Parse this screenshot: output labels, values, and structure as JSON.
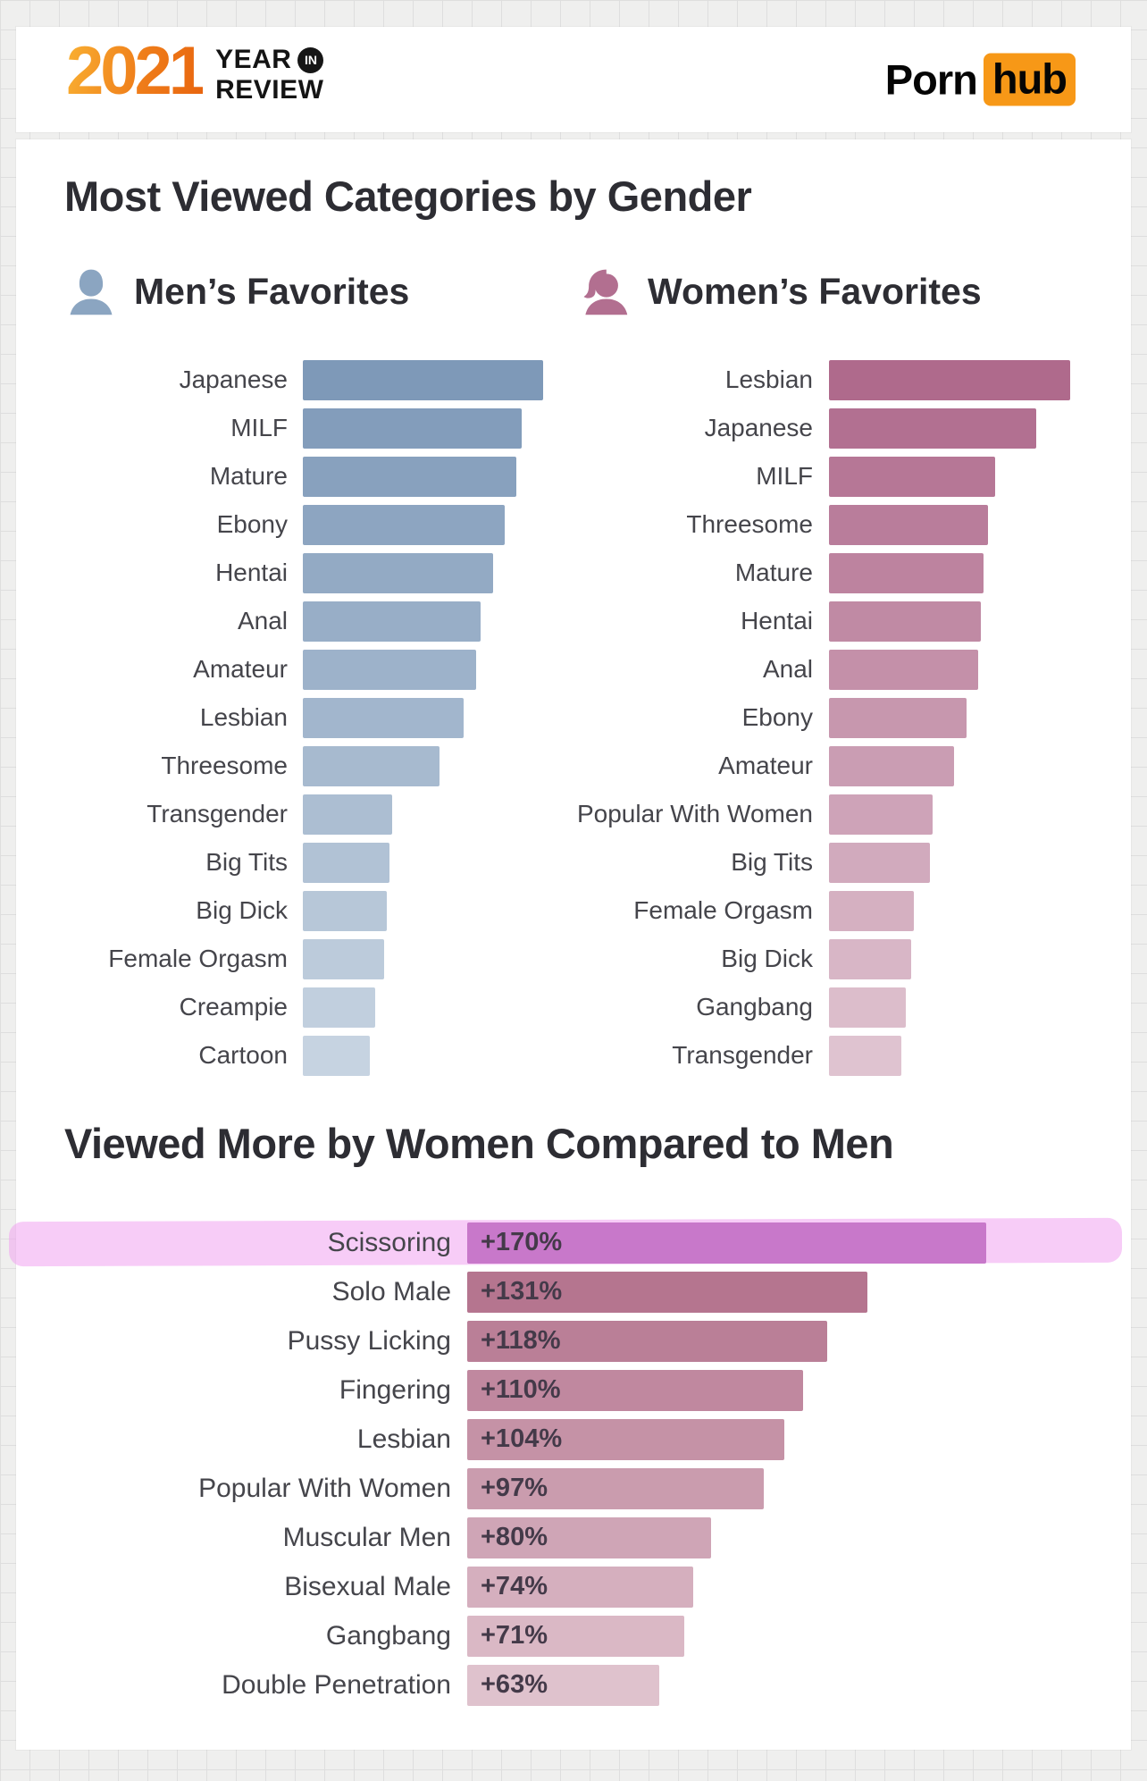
{
  "header": {
    "year": "2021",
    "year_word": "YEAR",
    "in_badge": "IN",
    "review_word": "REVIEW",
    "brand_porn": "Porn",
    "brand_hub": "hub"
  },
  "colors": {
    "brand_orange": "#f79817",
    "men_bar_start": "#7e99b8",
    "men_bar_end": "#c6d3e1",
    "women_bar_start": "#af6a8c",
    "women_bar_end": "#dfc3d0",
    "compare_bar_start": "#b5758f",
    "compare_bar_end": "#dfc2cd",
    "highlight_bar": "#c878ca",
    "highlight_band": "#efa2f1"
  },
  "section1": {
    "title": "Most Viewed Categories by Gender",
    "men": {
      "legend": "Men’s Favorites",
      "icon": "man-silhouette-icon"
    },
    "women": {
      "legend": "Women’s Favorites",
      "icon": "woman-silhouette-icon"
    }
  },
  "section2": {
    "title": "Viewed More by Women Compared to Men"
  },
  "chart_data": [
    {
      "type": "bar",
      "title": "Men’s Favorites",
      "orientation": "horizontal",
      "value_axis": "relative views (no numeric axis shown; longest bar = 100, others estimated from bar lengths)",
      "categories": [
        "Japanese",
        "MILF",
        "Mature",
        "Ebony",
        "Hentai",
        "Anal",
        "Amateur",
        "Lesbian",
        "Threesome",
        "Transgender",
        "Big Tits",
        "Big Dick",
        "Female Orgasm",
        "Creampie",
        "Cartoon"
      ],
      "values": [
        100,
        91,
        89,
        84,
        79,
        74,
        72,
        67,
        57,
        37,
        36,
        35,
        34,
        30,
        28
      ],
      "legend_position": "above-left",
      "grid": false
    },
    {
      "type": "bar",
      "title": "Women’s Favorites",
      "orientation": "horizontal",
      "value_axis": "relative views (no numeric axis shown; longest bar = 100, others estimated from bar lengths)",
      "categories": [
        "Lesbian",
        "Japanese",
        "MILF",
        "Threesome",
        "Mature",
        "Hentai",
        "Anal",
        "Ebony",
        "Amateur",
        "Popular With Women",
        "Big Tits",
        "Female Orgasm",
        "Big Dick",
        "Gangbang",
        "Transgender"
      ],
      "values": [
        100,
        86,
        69,
        66,
        64,
        63,
        62,
        57,
        52,
        43,
        42,
        35,
        34,
        32,
        30
      ],
      "legend_position": "above-left",
      "grid": false
    },
    {
      "type": "bar",
      "title": "Viewed More by Women Compared to Men",
      "orientation": "horizontal",
      "unit": "percent more viewed by women than by men",
      "categories": [
        "Scissoring",
        "Solo Male",
        "Pussy Licking",
        "Fingering",
        "Lesbian",
        "Popular With Women",
        "Muscular Men",
        "Bisexual Male",
        "Gangbang",
        "Double Penetration"
      ],
      "values": [
        170,
        131,
        118,
        110,
        104,
        97,
        80,
        74,
        71,
        63
      ],
      "data_labels": [
        "+170%",
        "+131%",
        "+118%",
        "+110%",
        "+104%",
        "+97%",
        "+80%",
        "+74%",
        "+71%",
        "+63%"
      ],
      "highlight_index": 0,
      "annotations": [
        "Top row (Scissoring) is emphasized with a pink highlighter stroke spanning the row"
      ],
      "grid": false
    }
  ]
}
